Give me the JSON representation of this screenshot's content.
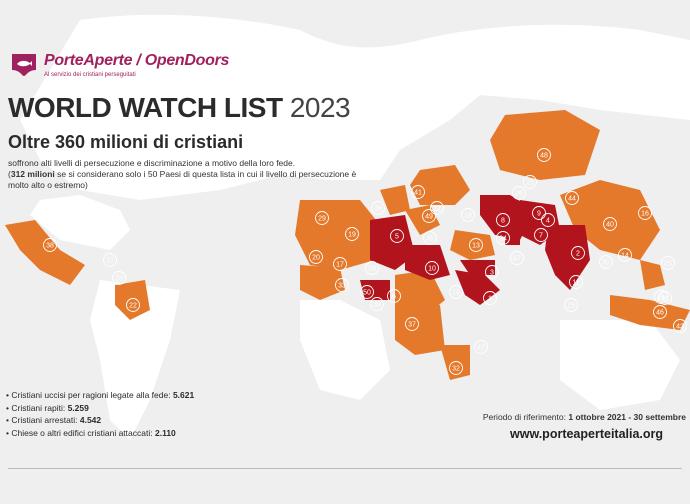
{
  "header": {
    "logo_text": "PorteAperte / OpenDoors",
    "logo_tagline": "Al servizio dei cristiani perseguitati",
    "title_main": "WORLD WATCH LIST",
    "title_year": "2023",
    "subtitle": "Oltre 360 milioni di cristiani",
    "desc_line1": "soffrono alti livelli di persecuzione e discriminazione a motivo della loro fede.",
    "desc_bold": "312 milioni",
    "desc_line2": " se si considerano solo i 50 Paesi di questa lista in cui il livello di persecuzione è molto alto o estremo)"
  },
  "stats": [
    {
      "label": "Cristiani uccisi per ragioni legate alla fede:",
      "value": "5.621"
    },
    {
      "label": "Cristiani rapiti:",
      "value": "5.259"
    },
    {
      "label": "Cristiani arrestati:",
      "value": "4.542"
    },
    {
      "label": "Chiese o altri edifici cristiani attaccati:",
      "value": "2.110"
    }
  ],
  "footer": {
    "period_label": "Periodo di riferimento:",
    "period_value": "1 ottobre 2021 - 30 settembre",
    "website": "www.porteaperteitalia.org"
  },
  "colors": {
    "background": "#efefef",
    "land": "#ffffff",
    "extreme": "#b2141e",
    "very_high": "#e4782b",
    "brand": "#a0215f"
  },
  "map_ranks": [
    "48",
    "29",
    "36",
    "12",
    "49",
    "41",
    "18",
    "26",
    "21",
    "44",
    "8",
    "9",
    "4",
    "16",
    "40",
    "19",
    "5",
    "35",
    "13",
    "34",
    "7",
    "3",
    "27",
    "38",
    "20",
    "17",
    "28",
    "10",
    "47",
    "2",
    "11",
    "30",
    "14",
    "25",
    "33",
    "23",
    "50",
    "6",
    "24",
    "39",
    "45",
    "15",
    "22",
    "37",
    "42",
    "1",
    "31",
    "46",
    "43",
    "32"
  ]
}
